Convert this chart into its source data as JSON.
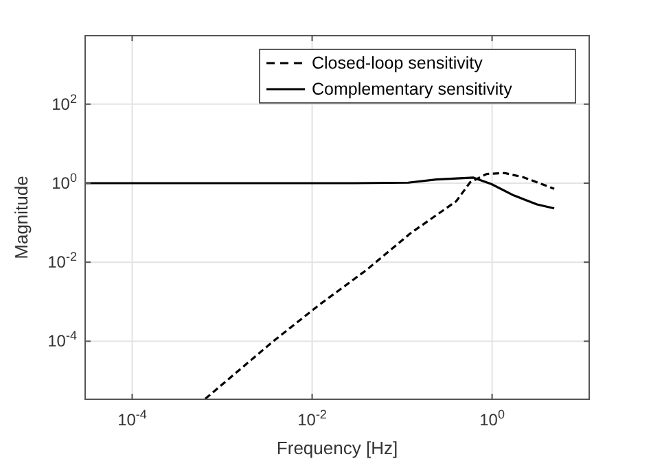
{
  "chart_data": {
    "type": "line",
    "xlabel": "Frequency [Hz]",
    "ylabel": "Magnitude",
    "log": "xy",
    "grid": true,
    "legend": "top right",
    "xlim": [
      3e-05,
      12
    ],
    "ylim": [
      3.4e-06,
      5400
    ],
    "xticks": [
      {
        "value": 0.0001,
        "label": "10$^{-4}$"
      },
      {
        "value": 0.01,
        "label": "10$^{-2}$"
      },
      {
        "value": 1,
        "label": "10$^{0}$"
      }
    ],
    "yticks": [
      {
        "value": 0.0001,
        "label": "10$^{-4}$"
      },
      {
        "value": 0.01,
        "label": "10$^{-2}$"
      },
      {
        "value": 1,
        "label": "10$^{0}$"
      },
      {
        "value": 100,
        "label": "10$^{2}$"
      }
    ],
    "series": [
      {
        "name": "Closed-loop sensitivity",
        "color": "#000000",
        "line_style": "dashed",
        "x": [
          0.00065,
          0.0037,
          0.0123,
          0.04,
          0.124,
          0.4,
          0.57,
          0.87,
          1.38,
          2.21,
          3.55,
          4.9
        ],
        "values": [
          3.5e-06,
          0.0001,
          0.00087,
          0.0063,
          0.054,
          0.35,
          1.05,
          1.71,
          1.8,
          1.42,
          0.95,
          0.72
        ]
      },
      {
        "name": "Complementary sensitivity",
        "color": "#000000",
        "line_style": "solid",
        "x": [
          3e-05,
          0.03,
          0.117,
          0.24,
          0.62,
          0.98,
          1.74,
          3.16,
          4.9
        ],
        "values": [
          1,
          1,
          1.03,
          1.24,
          1.38,
          0.95,
          0.49,
          0.29,
          0.23
        ]
      }
    ]
  }
}
